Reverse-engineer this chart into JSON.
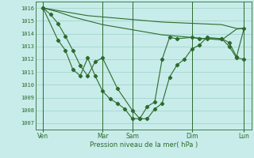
{
  "bg_color": "#c8ecea",
  "line_color": "#2d6b2d",
  "grid_color": "#9ecfca",
  "xlabel": "Pression niveau de la mer( hPa )",
  "ylim": [
    1006.5,
    1016.5
  ],
  "yticks": [
    1007,
    1008,
    1009,
    1010,
    1011,
    1012,
    1013,
    1014,
    1015,
    1016
  ],
  "xtick_labels": [
    "Ven",
    "Mar",
    "Sam",
    "Dim",
    "Lun"
  ],
  "xtick_positions": [
    0,
    8,
    12,
    20,
    27
  ],
  "xlim": [
    -1,
    28
  ],
  "line1_x": [
    0,
    2,
    4,
    6,
    8,
    10,
    12,
    14,
    16,
    18,
    20,
    22,
    24,
    26,
    27
  ],
  "line1_y": [
    1016.0,
    1015.8,
    1015.6,
    1015.4,
    1015.3,
    1015.2,
    1015.1,
    1015.0,
    1014.9,
    1014.85,
    1014.8,
    1014.75,
    1014.7,
    1014.4,
    1014.4
  ],
  "line2_x": [
    0,
    2,
    4,
    6,
    8,
    10,
    12,
    14,
    16,
    18,
    20,
    22,
    24,
    26,
    27
  ],
  "line2_y": [
    1016.0,
    1015.7,
    1015.3,
    1015.0,
    1014.7,
    1014.5,
    1014.3,
    1014.1,
    1013.9,
    1013.8,
    1013.7,
    1013.6,
    1013.5,
    1014.35,
    1014.4
  ],
  "line3_x": [
    0,
    1,
    2,
    3,
    4,
    5,
    6,
    7,
    8,
    10,
    12,
    13,
    14,
    15,
    16,
    17,
    18,
    19,
    20,
    21,
    22,
    24,
    25,
    26,
    27
  ],
  "line3_y": [
    1016.0,
    1015.5,
    1014.8,
    1013.8,
    1012.7,
    1011.5,
    1010.7,
    1011.8,
    1012.1,
    1009.7,
    1008.0,
    1007.35,
    1007.35,
    1008.1,
    1008.55,
    1010.6,
    1011.55,
    1012.0,
    1012.8,
    1013.1,
    1013.7,
    1013.6,
    1013.0,
    1012.1,
    1012.0
  ],
  "line4_x": [
    0,
    2,
    3,
    4,
    5,
    6,
    7,
    8,
    9,
    10,
    11,
    12,
    13,
    14,
    15,
    16,
    17,
    18,
    20,
    21,
    22,
    24,
    25,
    26,
    27
  ],
  "line4_y": [
    1016.0,
    1013.5,
    1012.7,
    1011.2,
    1010.7,
    1012.1,
    1010.7,
    1009.5,
    1008.9,
    1008.55,
    1008.1,
    1007.35,
    1007.35,
    1008.3,
    1008.65,
    1012.0,
    1013.7,
    1013.6,
    1013.7,
    1013.6,
    1013.6,
    1013.6,
    1013.3,
    1012.2,
    1014.4
  ]
}
